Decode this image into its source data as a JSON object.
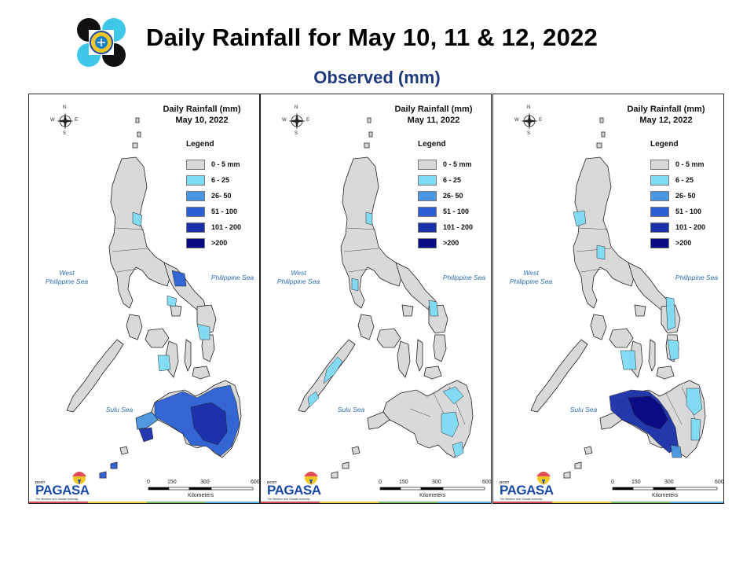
{
  "title": "Daily Rainfall for May 10, 11 & 12, 2022",
  "subtitle": "Observed (mm)",
  "legend": {
    "title": "Legend",
    "items": [
      {
        "label": "0 - 5 mm",
        "color": "#d9d9d9"
      },
      {
        "label": "6 - 25",
        "color": "#7fdcf5"
      },
      {
        "label": "26- 50",
        "color": "#4a96e0"
      },
      {
        "label": "51 - 100",
        "color": "#2b5fd3"
      },
      {
        "label": "101 - 200",
        "color": "#1a30a8"
      },
      {
        "label": ">200",
        "color": "#0a0a82"
      }
    ]
  },
  "panels": [
    {
      "title_line1": "Daily Rainfall (mm)",
      "title_line2": "May 10, 2022"
    },
    {
      "title_line1": "Daily Rainfall (mm)",
      "title_line2": "May 11, 2022"
    },
    {
      "title_line1": "Daily Rainfall (mm)",
      "title_line2": "May 12, 2022"
    }
  ],
  "labels": {
    "west_sea_line1": "West",
    "west_sea_line2": "Philippine Sea",
    "east_sea": "Philippine Sea",
    "south_sea": "Sulu Sea"
  },
  "compass": {
    "n": "N",
    "s": "S",
    "e": "E",
    "w": "W"
  },
  "scale": {
    "ticks": [
      "0",
      "150",
      "300",
      "600"
    ],
    "unit": "Kilometers"
  },
  "branding": {
    "doost": "DOST",
    "name": "PAGASA",
    "tagline": "The Weather and Climate Authority"
  },
  "icons": {
    "logo": "pagasa-seal-icon",
    "compass": "compass-rose-icon"
  }
}
